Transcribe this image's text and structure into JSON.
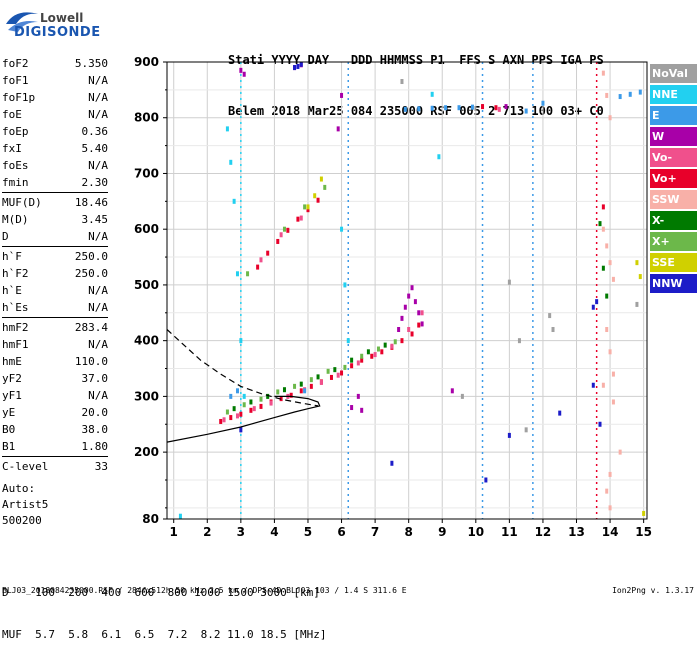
{
  "logo": {
    "line1": "Lowell",
    "line2": "DIGISONDE"
  },
  "header": {
    "line1": "Stati YYYY DAY   DDD HHMMSS P1  FFS S AXN PPS IGA PS",
    "line2": "Belem 2018 Mar25 084 235000 RSF 005 2 713 100 03+ C0"
  },
  "params_groups": [
    [
      {
        "name": "foF2",
        "value": "5.350"
      },
      {
        "name": "foF1",
        "value": "N/A"
      },
      {
        "name": "foF1p",
        "value": "N/A"
      },
      {
        "name": "foE",
        "value": "N/A"
      },
      {
        "name": "foEp",
        "value": "0.36"
      },
      {
        "name": "fxI",
        "value": "5.40"
      },
      {
        "name": "foEs",
        "value": "N/A"
      },
      {
        "name": "fmin",
        "value": "2.30"
      }
    ],
    [
      {
        "name": "MUF(D)",
        "value": "18.46"
      },
      {
        "name": "M(D)",
        "value": "3.45"
      },
      {
        "name": "D",
        "value": "N/A"
      }
    ],
    [
      {
        "name": "h`F",
        "value": "250.0"
      },
      {
        "name": "h`F2",
        "value": "250.0"
      },
      {
        "name": "h`E",
        "value": "N/A"
      },
      {
        "name": "h`Es",
        "value": "N/A"
      }
    ],
    [
      {
        "name": "hmF2",
        "value": "283.4"
      },
      {
        "name": "hmF1",
        "value": "N/A"
      },
      {
        "name": "hmE",
        "value": "110.0"
      },
      {
        "name": "yF2",
        "value": "37.0"
      },
      {
        "name": "yF1",
        "value": "N/A"
      },
      {
        "name": "yE",
        "value": "20.0"
      },
      {
        "name": "B0",
        "value": "38.0"
      },
      {
        "name": "B1",
        "value": "1.80"
      }
    ],
    [
      {
        "name": "C-level",
        "value": "33"
      }
    ]
  ],
  "auto": {
    "line1": "Auto:",
    "line2": "Artist5",
    "line3": "500200"
  },
  "mufTable": {
    "row1": "D    100  200  400  600  800 1000 1500 3000 [km]",
    "row2": "MUF  5.7  5.8  6.1  6.5  7.2  8.2 11.0 18.5 [MHz]"
  },
  "footer": "BLJ03_2018084235000.RSF / 284fx512h 50 kHz 2.5 km / DPS-4D BLJ03 103 / 1.4 S 311.6 E",
  "version": "Ion2Png v. 1.3.17",
  "legend": [
    {
      "label": "NoVal",
      "color": "#a0a0a0"
    },
    {
      "label": "NNE",
      "color": "#22d0f0"
    },
    {
      "label": "E",
      "color": "#3c9ae8"
    },
    {
      "label": "W",
      "color": "#a800a8"
    },
    {
      "label": "Vo-",
      "color": "#f0508c"
    },
    {
      "label": "Vo+",
      "color": "#e8002a"
    },
    {
      "label": "SSW",
      "color": "#f8b0a8"
    },
    {
      "label": "X-",
      "color": "#007a00"
    },
    {
      "label": "X+",
      "color": "#6cb84a"
    },
    {
      "label": "SSE",
      "color": "#d0d000"
    },
    {
      "label": "NNW",
      "color": "#1c1cc8"
    }
  ],
  "chart_data": {
    "type": "scatter",
    "title": "",
    "xlabel": "",
    "ylabel": "",
    "xlim": [
      0.8,
      15.1
    ],
    "ylim": [
      80,
      900
    ],
    "xticks": [
      1,
      2,
      3,
      4,
      5,
      6,
      7,
      8,
      9,
      10,
      11,
      12,
      13,
      14,
      15
    ],
    "yticks": [
      80,
      200,
      300,
      400,
      500,
      600,
      700,
      800,
      900
    ],
    "grid": true,
    "legend_position": "right",
    "series": [
      {
        "name": "Vo+",
        "color": "#e8002a",
        "points": [
          [
            2.4,
            255
          ],
          [
            2.7,
            262
          ],
          [
            3.0,
            268
          ],
          [
            3.3,
            275
          ],
          [
            3.6,
            282
          ],
          [
            3.9,
            290
          ],
          [
            4.2,
            296
          ],
          [
            4.5,
            302
          ],
          [
            4.8,
            310
          ],
          [
            5.1,
            318
          ],
          [
            5.4,
            326
          ],
          [
            5.7,
            334
          ],
          [
            6.0,
            342
          ],
          [
            6.3,
            355
          ],
          [
            6.6,
            365
          ],
          [
            6.9,
            372
          ],
          [
            7.2,
            380
          ],
          [
            7.5,
            388
          ],
          [
            7.8,
            400
          ],
          [
            8.1,
            412
          ],
          [
            8.3,
            428
          ],
          [
            3.5,
            532
          ],
          [
            3.8,
            557
          ],
          [
            4.1,
            578
          ],
          [
            4.4,
            598
          ],
          [
            4.7,
            618
          ],
          [
            5.0,
            635
          ],
          [
            5.3,
            652
          ],
          [
            10.2,
            820
          ],
          [
            10.6,
            818
          ],
          [
            13.8,
            640
          ]
        ]
      },
      {
        "name": "Vo-",
        "color": "#f0508c",
        "points": [
          [
            2.5,
            258
          ],
          [
            2.9,
            265
          ],
          [
            3.4,
            278
          ],
          [
            3.9,
            288
          ],
          [
            4.4,
            300
          ],
          [
            4.9,
            312
          ],
          [
            5.4,
            325
          ],
          [
            5.9,
            338
          ],
          [
            6.5,
            360
          ],
          [
            7.0,
            375
          ],
          [
            7.5,
            390
          ],
          [
            8.0,
            420
          ],
          [
            8.4,
            450
          ],
          [
            10.7,
            815
          ],
          [
            3.6,
            545
          ],
          [
            4.2,
            590
          ],
          [
            4.8,
            620
          ]
        ]
      },
      {
        "name": "X+",
        "color": "#6cb84a",
        "points": [
          [
            2.6,
            272
          ],
          [
            3.1,
            285
          ],
          [
            3.6,
            295
          ],
          [
            4.1,
            308
          ],
          [
            4.6,
            318
          ],
          [
            5.1,
            330
          ],
          [
            5.6,
            345
          ],
          [
            6.1,
            352
          ],
          [
            6.6,
            372
          ],
          [
            7.1,
            385
          ],
          [
            7.6,
            398
          ],
          [
            4.3,
            600
          ],
          [
            4.9,
            640
          ],
          [
            5.5,
            675
          ],
          [
            3.2,
            520
          ]
        ]
      },
      {
        "name": "X-",
        "color": "#007a00",
        "points": [
          [
            2.8,
            278
          ],
          [
            3.3,
            290
          ],
          [
            3.8,
            300
          ],
          [
            4.3,
            312
          ],
          [
            4.8,
            322
          ],
          [
            5.3,
            335
          ],
          [
            5.8,
            348
          ],
          [
            6.3,
            365
          ],
          [
            6.8,
            380
          ],
          [
            7.3,
            392
          ],
          [
            13.7,
            610
          ],
          [
            13.8,
            530
          ],
          [
            13.9,
            480
          ]
        ]
      },
      {
        "name": "W",
        "color": "#a800a8",
        "points": [
          [
            7.7,
            420
          ],
          [
            7.8,
            440
          ],
          [
            7.9,
            460
          ],
          [
            8.0,
            480
          ],
          [
            8.1,
            495
          ],
          [
            8.2,
            470
          ],
          [
            8.3,
            450
          ],
          [
            8.4,
            430
          ],
          [
            6.5,
            300
          ],
          [
            6.3,
            280
          ],
          [
            6.6,
            275
          ],
          [
            10.9,
            820
          ],
          [
            6.0,
            840
          ],
          [
            5.9,
            780
          ],
          [
            4.6,
            890
          ],
          [
            4.8,
            895
          ],
          [
            3.0,
            885
          ],
          [
            3.1,
            878
          ],
          [
            9.3,
            310
          ]
        ]
      },
      {
        "name": "E",
        "color": "#3c9ae8",
        "points": [
          [
            7.9,
            815
          ],
          [
            8.3,
            816
          ],
          [
            8.7,
            817
          ],
          [
            9.1,
            818
          ],
          [
            9.5,
            818
          ],
          [
            9.9,
            819
          ],
          [
            14.3,
            838
          ],
          [
            14.6,
            842
          ],
          [
            14.9,
            846
          ],
          [
            11.5,
            812
          ],
          [
            12.0,
            826
          ],
          [
            2.7,
            300
          ],
          [
            2.9,
            310
          ],
          [
            4.9,
            310
          ]
        ]
      },
      {
        "name": "NNE",
        "color": "#22d0f0",
        "points": [
          [
            2.6,
            780
          ],
          [
            2.7,
            720
          ],
          [
            2.8,
            650
          ],
          [
            2.9,
            520
          ],
          [
            3.0,
            400
          ],
          [
            3.1,
            300
          ],
          [
            6.0,
            600
          ],
          [
            6.1,
            500
          ],
          [
            6.2,
            400
          ],
          [
            1.2,
            85
          ],
          [
            8.7,
            842
          ],
          [
            8.9,
            730
          ]
        ]
      },
      {
        "name": "SSW",
        "color": "#f8b0a8",
        "points": [
          [
            13.8,
            880
          ],
          [
            13.9,
            840
          ],
          [
            14.0,
            800
          ],
          [
            13.8,
            600
          ],
          [
            13.9,
            570
          ],
          [
            14.0,
            540
          ],
          [
            14.1,
            510
          ],
          [
            13.9,
            420
          ],
          [
            14.0,
            380
          ],
          [
            14.1,
            340
          ],
          [
            13.8,
            320
          ],
          [
            14.0,
            160
          ],
          [
            13.9,
            130
          ],
          [
            14.0,
            100
          ],
          [
            14.3,
            200
          ],
          [
            14.1,
            290
          ]
        ]
      },
      {
        "name": "SSE",
        "color": "#d0d000",
        "points": [
          [
            5.0,
            640
          ],
          [
            5.2,
            660
          ],
          [
            5.4,
            690
          ],
          [
            14.8,
            540
          ],
          [
            14.9,
            515
          ],
          [
            15.0,
            90
          ]
        ]
      },
      {
        "name": "NNW",
        "color": "#1c1cc8",
        "points": [
          [
            4.6,
            890
          ],
          [
            4.7,
            892
          ],
          [
            4.8,
            896
          ],
          [
            13.6,
            470
          ],
          [
            13.5,
            460
          ],
          [
            13.5,
            320
          ],
          [
            13.7,
            250
          ],
          [
            7.5,
            180
          ],
          [
            3.0,
            240
          ],
          [
            11.0,
            230
          ],
          [
            10.3,
            150
          ],
          [
            12.5,
            270
          ]
        ]
      },
      {
        "name": "NoVal",
        "color": "#a0a0a0",
        "points": [
          [
            12.2,
            445
          ],
          [
            12.3,
            420
          ],
          [
            11.0,
            505
          ],
          [
            11.5,
            240
          ],
          [
            9.6,
            300
          ],
          [
            11.3,
            400
          ],
          [
            7.8,
            865
          ],
          [
            14.8,
            465
          ]
        ]
      }
    ],
    "curves": [
      {
        "name": "profile",
        "style": "solid",
        "points": [
          [
            0.8,
            218
          ],
          [
            2.0,
            232
          ],
          [
            3.0,
            245
          ],
          [
            4.0,
            262
          ],
          [
            4.6,
            272
          ],
          [
            5.0,
            278
          ],
          [
            5.35,
            283
          ],
          [
            5.3,
            290
          ],
          [
            5.0,
            296
          ],
          [
            4.5,
            300
          ],
          [
            4.0,
            300
          ]
        ]
      },
      {
        "name": "profile-extension",
        "style": "dashed",
        "points": [
          [
            0.8,
            420
          ],
          [
            1.2,
            398
          ],
          [
            1.8,
            365
          ],
          [
            2.4,
            340
          ],
          [
            3.0,
            318
          ],
          [
            3.6,
            305
          ],
          [
            4.2,
            295
          ],
          [
            4.8,
            288
          ],
          [
            5.3,
            283
          ]
        ]
      }
    ],
    "vertical_lines": [
      {
        "x": 3.0,
        "ymin": 80,
        "ymax": 900,
        "color": "#22d0f0"
      },
      {
        "x": 6.2,
        "ymin": 80,
        "ymax": 900,
        "color": "#3c9ae8"
      },
      {
        "x": 10.2,
        "ymin": 80,
        "ymax": 900,
        "color": "#3c9ae8"
      },
      {
        "x": 11.7,
        "ymin": 80,
        "ymax": 900,
        "color": "#3c9ae8"
      },
      {
        "x": 13.6,
        "ymin": 80,
        "ymax": 900,
        "color": "#e8002a"
      }
    ]
  }
}
